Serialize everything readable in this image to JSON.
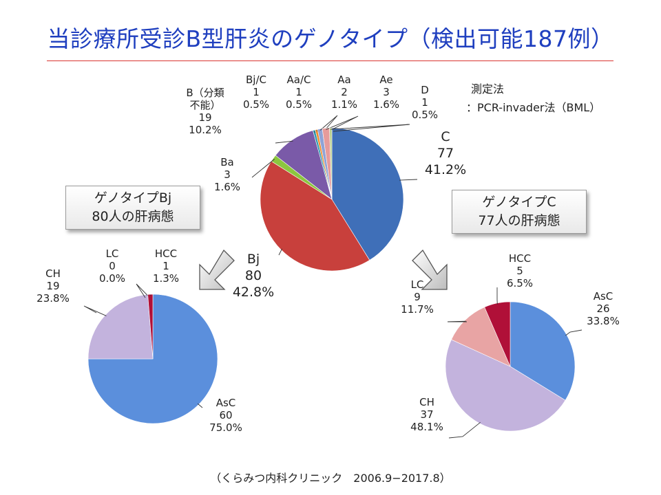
{
  "slide": {
    "title": "当診療所受診B型肝炎のゲノタイプ（検出可能187例）",
    "method_line1": "測定法",
    "method_line2": "：PCR-invader法（BML）",
    "callout_bj_line1": "ゲノタイプBj",
    "callout_bj_line2": "80人の肝病態",
    "callout_c_line1": "ゲノタイプC",
    "callout_c_line2": "77人の肝病態",
    "footer": "（くらみつ内科クリニック　2006.9−2017.8）"
  },
  "colors": {
    "title": "#1f3fbf",
    "rule": "#d9332f",
    "C": "#3f6fb8",
    "Bj": "#c8403c",
    "Ba": "#8cc63f",
    "B_unclassified": "#7a5aa8",
    "BjC": "#2f9bb0",
    "AaC": "#ef8a2a",
    "Aa": "#8fa3d6",
    "Ae": "#e69b9b",
    "D": "#b8d08a",
    "AsC": "#5b8fdc",
    "CH": "#c3b3dd",
    "LC": "#e8a4a4",
    "HCC": "#b01038"
  },
  "chart_data": [
    {
      "type": "pie",
      "title": "",
      "categories": [
        "C",
        "Bj",
        "Ba",
        "B（分類不能）",
        "Bj/C",
        "Aa/C",
        "Aa",
        "Ae",
        "D"
      ],
      "values": [
        77,
        80,
        3,
        19,
        1,
        1,
        2,
        3,
        1
      ],
      "percent_labels": [
        "41.2%",
        "42.8%",
        "1.6%",
        "10.2%",
        "0.5%",
        "0.5%",
        "1.1%",
        "1.6%",
        "0.5%"
      ],
      "label_lines": [
        [
          "C",
          "77",
          "41.2%"
        ],
        [
          "Bj",
          "80",
          "42.8%"
        ],
        [
          "Ba",
          "3",
          "1.6%"
        ],
        [
          "B（分類",
          "不能）",
          "19",
          "10.2%"
        ],
        [
          "Bj/C",
          "1",
          "0.5%"
        ],
        [
          "Aa/C",
          "1",
          "0.5%"
        ],
        [
          "Aa",
          "2",
          "1.1%"
        ],
        [
          "Ae",
          "3",
          "1.6%"
        ],
        [
          "D",
          "1",
          "0.5%"
        ]
      ],
      "color_keys": [
        "C",
        "Bj",
        "Ba",
        "B_unclassified",
        "BjC",
        "AaC",
        "Aa",
        "Ae",
        "D"
      ]
    },
    {
      "type": "pie",
      "title": "",
      "categories": [
        "AsC",
        "CH",
        "LC",
        "HCC"
      ],
      "values": [
        60,
        19,
        0,
        1
      ],
      "percent_labels": [
        "75.0%",
        "23.8%",
        "0.0%",
        "1.3%"
      ],
      "label_lines": [
        [
          "AsC",
          "60",
          "75.0%"
        ],
        [
          "CH",
          "19",
          "23.8%"
        ],
        [
          "LC",
          "0",
          "0.0%"
        ],
        [
          "HCC",
          "1",
          "1.3%"
        ]
      ],
      "color_keys": [
        "AsC",
        "CH",
        "LC",
        "HCC"
      ]
    },
    {
      "type": "pie",
      "title": "",
      "categories": [
        "AsC",
        "CH",
        "LC",
        "HCC"
      ],
      "values": [
        26,
        37,
        9,
        5
      ],
      "percent_labels": [
        "33.8%",
        "48.1%",
        "11.7%",
        "6.5%"
      ],
      "label_lines": [
        [
          "AsC",
          "26",
          "33.8%"
        ],
        [
          "CH",
          "37",
          "48.1%"
        ],
        [
          "LC",
          "9",
          "11.7%"
        ],
        [
          "HCC",
          "5",
          "6.5%"
        ]
      ],
      "color_keys": [
        "AsC",
        "CH",
        "LC",
        "HCC"
      ]
    }
  ]
}
